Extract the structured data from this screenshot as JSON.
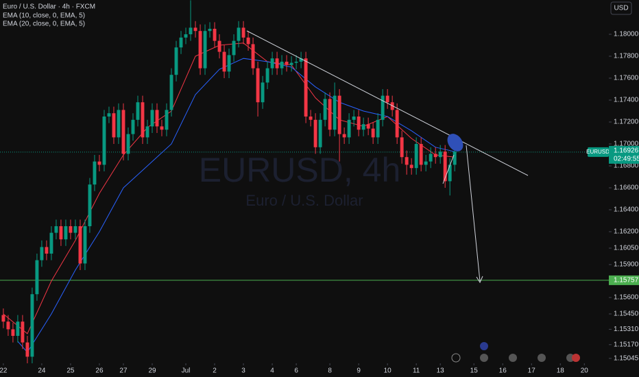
{
  "chart_data": {
    "type": "candlestick",
    "title": "Euro / U.S. Dollar · 4h · FXCM",
    "watermark": "EURUSD, 4h",
    "watermark_subtitle": "Euro / U.S. Dollar",
    "currency": "USD",
    "up_color": "#089981",
    "down_color": "#f23645",
    "candles": {
      "open": [
        1.1544,
        1.1538,
        1.1531,
        1.1525,
        1.1538,
        1.1519,
        1.1506,
        1.1563,
        1.1594,
        1.1606,
        1.16,
        1.1619,
        1.1625,
        1.1613,
        1.1625,
        1.1619,
        1.1625,
        1.1591,
        1.1625,
        1.1663,
        1.1684,
        1.1681,
        1.1725,
        1.1728,
        1.1706,
        1.1731,
        1.1691,
        1.1709,
        1.1722,
        1.1738,
        1.1706,
        1.1716,
        1.1731,
        1.1716,
        1.1713,
        1.1731,
        1.1763,
        1.1788,
        1.1797,
        1.18,
        1.1806,
        1.1803,
        1.1769,
        1.1803,
        1.1805,
        1.1794,
        1.1784,
        1.1766,
        1.1781,
        1.1794,
        1.1806,
        1.1797,
        1.1791,
        1.1769,
        1.1738,
        1.1756,
        1.1769,
        1.1778,
        1.1769,
        1.1775,
        1.1772,
        1.1774,
        1.1775,
        1.1778,
        1.1725,
        1.1722,
        1.1697,
        1.1722,
        1.1741,
        1.1713,
        1.1744,
        1.1709,
        1.1706,
        1.1722,
        1.1725,
        1.1713,
        1.1718,
        1.1714,
        1.1706,
        1.1722,
        1.1744,
        1.1738,
        1.1731,
        1.1706,
        1.1688,
        1.1681,
        1.1678,
        1.17,
        1.1681,
        1.1684,
        1.1691,
        1.1688,
        1.1693,
        1.1666,
        1.1681
      ],
      "high": [
        1.155,
        1.1544,
        1.1537,
        1.1544,
        1.1544,
        1.1525,
        1.1569,
        1.16,
        1.1612,
        1.1612,
        1.1625,
        1.1631,
        1.1631,
        1.1631,
        1.1631,
        1.1631,
        1.1631,
        1.1631,
        1.1669,
        1.169,
        1.169,
        1.1731,
        1.1734,
        1.1734,
        1.1737,
        1.1737,
        1.1715,
        1.1728,
        1.1744,
        1.1744,
        1.1722,
        1.1737,
        1.1737,
        1.1722,
        1.1737,
        1.1769,
        1.1794,
        1.1803,
        1.1806,
        1.1831,
        1.1812,
        1.1809,
        1.1809,
        1.1811,
        1.1811,
        1.18,
        1.179,
        1.1787,
        1.18,
        1.1812,
        1.1812,
        1.1803,
        1.1797,
        1.1775,
        1.1762,
        1.1775,
        1.1784,
        1.1784,
        1.1781,
        1.1781,
        1.178,
        1.1781,
        1.1784,
        1.1784,
        1.1731,
        1.1728,
        1.1728,
        1.1747,
        1.1747,
        1.1756,
        1.175,
        1.1715,
        1.1728,
        1.1731,
        1.1731,
        1.1724,
        1.1724,
        1.172,
        1.1728,
        1.175,
        1.175,
        1.1744,
        1.1737,
        1.1712,
        1.1694,
        1.1687,
        1.1706,
        1.1706,
        1.169,
        1.1697,
        1.1697,
        1.1699,
        1.1699,
        1.1687,
        1.1699
      ],
      "low": [
        1.1532,
        1.1525,
        1.1519,
        1.1519,
        1.1513,
        1.15,
        1.15,
        1.1557,
        1.1588,
        1.1594,
        1.1594,
        1.1613,
        1.1607,
        1.1607,
        1.1613,
        1.1613,
        1.1585,
        1.1585,
        1.1619,
        1.1657,
        1.1675,
        1.1675,
        1.1719,
        1.17,
        1.17,
        1.1685,
        1.1685,
        1.1703,
        1.1716,
        1.17,
        1.17,
        1.171,
        1.171,
        1.1707,
        1.1707,
        1.1725,
        1.1757,
        1.1782,
        1.1791,
        1.1794,
        1.1797,
        1.1763,
        1.1763,
        1.1797,
        1.1788,
        1.1778,
        1.176,
        1.176,
        1.1775,
        1.1788,
        1.1791,
        1.1785,
        1.1763,
        1.1725,
        1.1732,
        1.175,
        1.1763,
        1.1763,
        1.1763,
        1.1766,
        1.1766,
        1.1768,
        1.1769,
        1.1719,
        1.1716,
        1.1691,
        1.1691,
        1.1716,
        1.1707,
        1.1707,
        1.1684,
        1.17,
        1.17,
        1.1716,
        1.1707,
        1.1707,
        1.1708,
        1.17,
        1.17,
        1.1716,
        1.1732,
        1.1725,
        1.17,
        1.1682,
        1.1672,
        1.1672,
        1.1672,
        1.1675,
        1.1675,
        1.1678,
        1.1682,
        1.1682,
        1.166,
        1.1653,
        1.1675
      ],
      "close": [
        1.1538,
        1.1531,
        1.1525,
        1.1538,
        1.1519,
        1.1506,
        1.1563,
        1.1594,
        1.1606,
        1.16,
        1.1619,
        1.1625,
        1.1613,
        1.1625,
        1.1619,
        1.1625,
        1.1591,
        1.1625,
        1.1663,
        1.1684,
        1.1681,
        1.1725,
        1.1728,
        1.1706,
        1.1731,
        1.1691,
        1.1709,
        1.1722,
        1.1738,
        1.1706,
        1.1716,
        1.1731,
        1.1716,
        1.1713,
        1.1731,
        1.1763,
        1.1788,
        1.1797,
        1.18,
        1.1806,
        1.1803,
        1.1769,
        1.1803,
        1.1805,
        1.1794,
        1.1784,
        1.1766,
        1.1781,
        1.1794,
        1.1806,
        1.1797,
        1.1791,
        1.1769,
        1.1738,
        1.1756,
        1.1769,
        1.1778,
        1.1769,
        1.1775,
        1.1772,
        1.1774,
        1.1775,
        1.1778,
        1.1725,
        1.1722,
        1.1697,
        1.1722,
        1.1741,
        1.1713,
        1.1744,
        1.1709,
        1.1706,
        1.1722,
        1.1725,
        1.1713,
        1.1718,
        1.1714,
        1.1706,
        1.1722,
        1.1744,
        1.1738,
        1.1731,
        1.1706,
        1.1688,
        1.1681,
        1.1678,
        1.17,
        1.1681,
        1.1684,
        1.1691,
        1.1688,
        1.1693,
        1.1666,
        1.1681,
        1.1693
      ]
    },
    "lines": [
      {
        "name": "EMA (10, close, 0, EMA, 5)",
        "color": "#f23645",
        "x": [
          0,
          5,
          10,
          15,
          20,
          25,
          30,
          35,
          40,
          45,
          50,
          55,
          60,
          65,
          70,
          75,
          80,
          85,
          90,
          94
        ],
        "values": [
          1.1545,
          1.1527,
          1.1575,
          1.1612,
          1.1655,
          1.169,
          1.1715,
          1.173,
          1.178,
          1.179,
          1.1792,
          1.1775,
          1.1772,
          1.1742,
          1.1722,
          1.1716,
          1.1725,
          1.1705,
          1.169,
          1.1688
        ]
      },
      {
        "name": "EMA (20, close, 0, EMA, 5)",
        "color": "#2962ff",
        "x": [
          3,
          5,
          10,
          15,
          20,
          25,
          30,
          35,
          40,
          45,
          50,
          55,
          60,
          65,
          70,
          75,
          80,
          85,
          90,
          94
        ],
        "values": [
          1.152,
          1.151,
          1.1545,
          1.1585,
          1.162,
          1.166,
          1.168,
          1.17,
          1.1745,
          1.1768,
          1.1778,
          1.1775,
          1.177,
          1.1752,
          1.1738,
          1.173,
          1.1725,
          1.1712,
          1.1697,
          1.1693
        ]
      }
    ],
    "price_line": {
      "name": "EURUSD",
      "value": 1.16926,
      "label": "1.16926",
      "countdown": "02:49:55",
      "color": "#089981"
    },
    "level": {
      "value": 1.15757,
      "label": "1.15757",
      "color": "#4caf50"
    },
    "xlim": [
      -0.7,
      126.1
    ],
    "xticks": [
      {
        "value": 0,
        "label": "22"
      },
      {
        "value": 8,
        "label": "24"
      },
      {
        "value": 14,
        "label": "25"
      },
      {
        "value": 20,
        "label": "26"
      },
      {
        "value": 25,
        "label": "27"
      },
      {
        "value": 31,
        "label": "29"
      },
      {
        "value": 38,
        "label": "Jul"
      },
      {
        "value": 44,
        "label": "2"
      },
      {
        "value": 50,
        "label": "3"
      },
      {
        "value": 56,
        "label": "4"
      },
      {
        "value": 61,
        "label": "6"
      },
      {
        "value": 68,
        "label": "8"
      },
      {
        "value": 74,
        "label": "9"
      },
      {
        "value": 80,
        "label": "10"
      },
      {
        "value": 86,
        "label": "11"
      },
      {
        "value": 91,
        "label": "13"
      },
      {
        "value": 98,
        "label": "15"
      },
      {
        "value": 104,
        "label": "16"
      },
      {
        "value": 110,
        "label": "17"
      },
      {
        "value": 116,
        "label": "18"
      },
      {
        "value": 121,
        "label": "20"
      }
    ],
    "ylim": [
      1.15,
      1.183125
    ],
    "yticks": [
      {
        "value": 1.18,
        "label": "1.18000"
      },
      {
        "value": 1.178,
        "label": "1.17800"
      },
      {
        "value": 1.176,
        "label": "1.17600"
      },
      {
        "value": 1.174,
        "label": "1.17400"
      },
      {
        "value": 1.172,
        "label": "1.17200"
      },
      {
        "value": 1.17,
        "label": "1.17000"
      },
      {
        "value": 1.168,
        "label": "1.16800"
      },
      {
        "value": 1.166,
        "label": "1.16600"
      },
      {
        "value": 1.164,
        "label": "1.16400"
      },
      {
        "value": 1.162,
        "label": "1.16200"
      },
      {
        "value": 1.1605,
        "label": "1.16050"
      },
      {
        "value": 1.159,
        "label": "1.15900"
      },
      {
        "value": 1.156,
        "label": "1.15600"
      },
      {
        "value": 1.1545,
        "label": "1.15450"
      },
      {
        "value": 1.1531,
        "label": "1.15310"
      },
      {
        "value": 1.1517,
        "label": "1.15170"
      },
      {
        "value": 1.15045,
        "label": "1.15045"
      }
    ]
  }
}
